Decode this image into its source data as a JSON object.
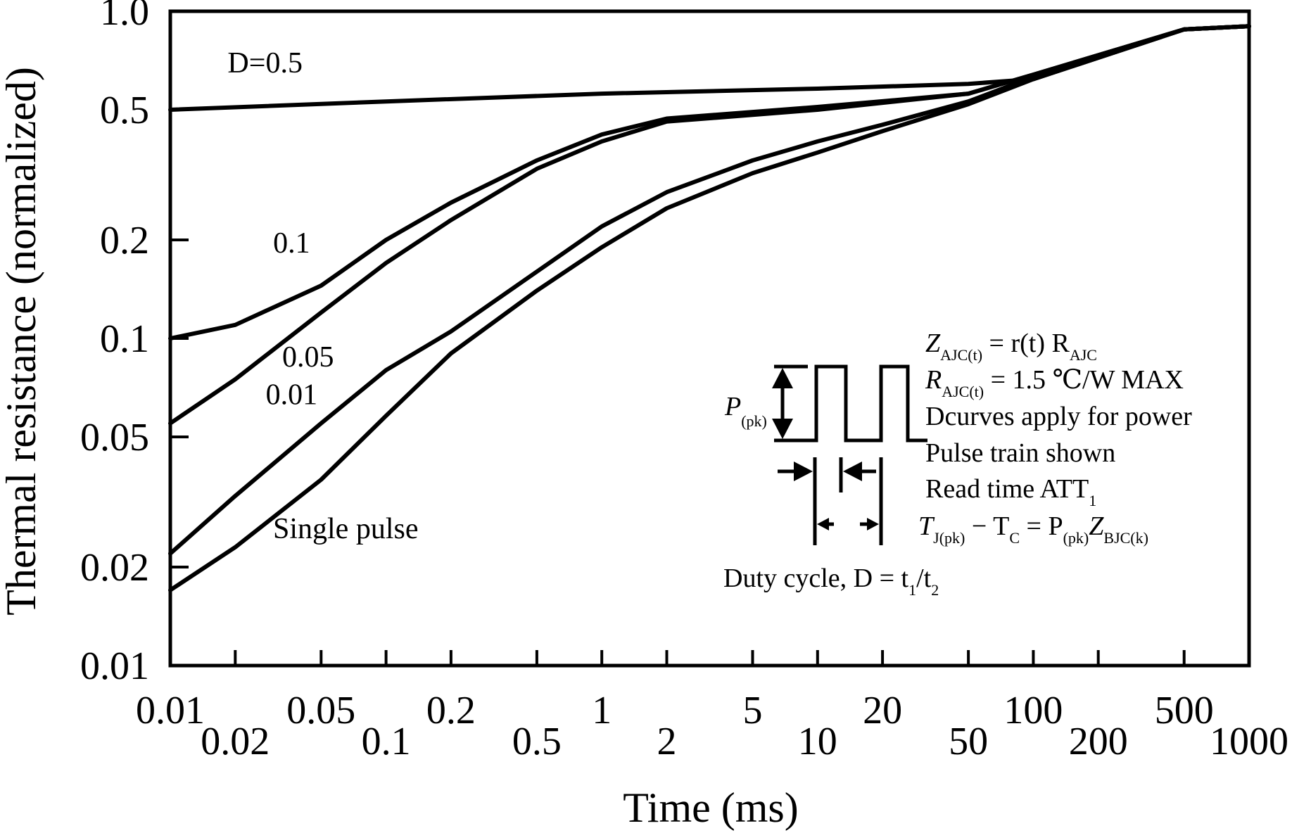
{
  "chart_data": {
    "type": "line",
    "xlabel": "Time (ms)",
    "ylabel": "Thermal resistance (normalized)",
    "xscale": "log",
    "yscale": "log",
    "xlim": [
      0.01,
      1000
    ],
    "ylim": [
      0.01,
      1.0
    ],
    "x_ticks": [
      "0.01",
      "0.02",
      "0.05",
      "0.1",
      "0.2",
      "0.5",
      "1",
      "2",
      "5",
      "10",
      "20",
      "50",
      "100",
      "200",
      "500",
      "1000"
    ],
    "y_ticks": [
      "1.0",
      "0.5",
      "0.2",
      "0.1",
      "0.05",
      "0.02",
      "0.01"
    ],
    "grid": false,
    "series": [
      {
        "name": "D=0.5",
        "x": [
          0.01,
          0.1,
          1,
          10,
          50,
          100,
          500,
          1000
        ],
        "y": [
          0.5,
          0.53,
          0.56,
          0.58,
          0.6,
          0.62,
          0.88,
          0.9
        ]
      },
      {
        "name": "0.1",
        "x": [
          0.01,
          0.02,
          0.05,
          0.1,
          0.2,
          0.5,
          1,
          2,
          10,
          50,
          100,
          500,
          1000
        ],
        "y": [
          0.1,
          0.11,
          0.145,
          0.2,
          0.26,
          0.35,
          0.42,
          0.47,
          0.51,
          0.56,
          0.64,
          0.88,
          0.9
        ]
      },
      {
        "name": "0.05",
        "x": [
          0.01,
          0.02,
          0.05,
          0.1,
          0.2,
          0.5,
          1,
          2,
          10,
          50,
          100,
          500,
          1000
        ],
        "y": [
          0.055,
          0.075,
          0.12,
          0.17,
          0.23,
          0.33,
          0.4,
          0.46,
          0.5,
          0.56,
          0.64,
          0.88,
          0.9
        ]
      },
      {
        "name": "0.01",
        "x": [
          0.01,
          0.02,
          0.05,
          0.1,
          0.2,
          0.5,
          1,
          2,
          5,
          10,
          20,
          50,
          100,
          500,
          1000
        ],
        "y": [
          0.022,
          0.033,
          0.055,
          0.08,
          0.105,
          0.16,
          0.22,
          0.28,
          0.35,
          0.4,
          0.45,
          0.53,
          0.63,
          0.88,
          0.9
        ]
      },
      {
        "name": "Single pulse",
        "x": [
          0.01,
          0.02,
          0.05,
          0.1,
          0.2,
          0.5,
          1,
          2,
          5,
          10,
          20,
          50,
          100,
          500,
          1000
        ],
        "y": [
          0.017,
          0.023,
          0.037,
          0.058,
          0.09,
          0.14,
          0.19,
          0.25,
          0.32,
          0.37,
          0.43,
          0.52,
          0.62,
          0.88,
          0.9
        ]
      }
    ],
    "annotations": {
      "l1_main": "Z",
      "l1_sub": "AJC(t)",
      "l1_rest": " = r(t) R",
      "l1_sub2": "AJC",
      "l2_main": "R",
      "l2_sub": "AJC(t)",
      "l2_rest": " = 1.5 ℃/W MAX",
      "l3": "Dcurves apply for power",
      "l4": "Pulse train shown",
      "l5_main": "Read time ATT",
      "l5_sub": "1",
      "l6_a": "T",
      "l6_a_sub": "J(pk)",
      "l6_b": " − T",
      "l6_b_sub": "C",
      "l6_c": " = P",
      "l6_c_sub": "(pk)",
      "l6_d": "Z",
      "l6_d_sub": "BJC(k)",
      "p_main": "P",
      "p_sub": "(pk)",
      "duty_main": "Duty cycle, D = t",
      "duty_sub1": "1",
      "duty_mid": "/t",
      "duty_sub2": "2"
    }
  }
}
